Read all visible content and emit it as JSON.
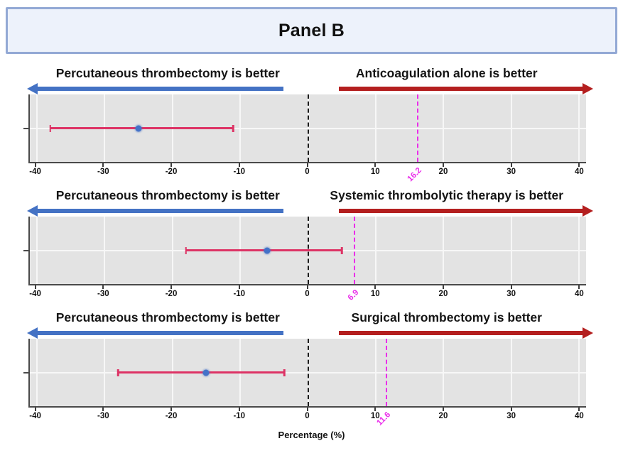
{
  "panel_title": "Panel B",
  "colors": {
    "left_arrow": "#4472c4",
    "right_arrow": "#b41f1f",
    "threshold_line": "#ea2dea",
    "ci_bar": "#dd3365",
    "estimate_dot": "#4472c8",
    "plot_background": "#e3e3e3",
    "title_box_fill": "#edf2fb",
    "title_box_border": "#93a9d5"
  },
  "chart_data": {
    "type": "interval",
    "xlabel": "Percentage (%)",
    "xlim": [
      -41,
      41
    ],
    "xticks": [
      -40,
      -30,
      -20,
      -10,
      0,
      10,
      20,
      30,
      40
    ],
    "reference_line": 0,
    "grid": true,
    "charts": [
      {
        "left_label": "Percutaneous thrombectomy is better",
        "right_label": "Anticoagulation alone is better",
        "estimate": -25,
        "ci": [
          -38,
          -11
        ],
        "threshold": 16.2,
        "threshold_label": "16.2"
      },
      {
        "left_label": "Percutaneous thrombectomy is better",
        "right_label": "Systemic thrombolytic therapy is better",
        "estimate": -6,
        "ci": [
          -18,
          5
        ],
        "threshold": 6.9,
        "threshold_label": "6.9"
      },
      {
        "left_label": "Percutaneous thrombectomy is better",
        "right_label": "Surgical thrombectomy is better",
        "estimate": -15,
        "ci": [
          -28,
          -3.5
        ],
        "threshold": 11.6,
        "threshold_label": "11.6"
      }
    ]
  }
}
